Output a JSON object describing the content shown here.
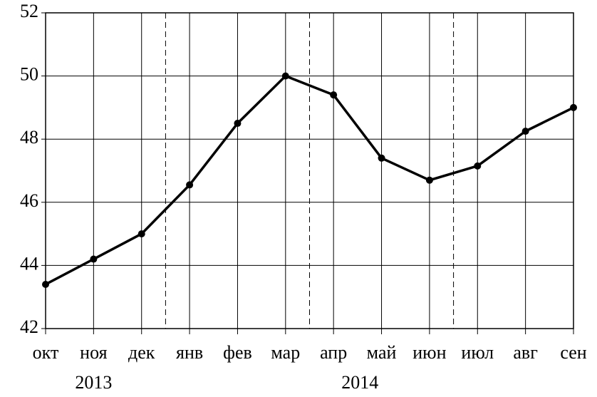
{
  "chart_data": {
    "type": "line",
    "categories": [
      "окт",
      "ноя",
      "дек",
      "янв",
      "фев",
      "мар",
      "апр",
      "май",
      "июн",
      "июл",
      "авг",
      "сен"
    ],
    "values": [
      43.4,
      44.2,
      45.0,
      46.55,
      48.5,
      50.0,
      49.4,
      47.4,
      46.7,
      47.15,
      48.25,
      49.0
    ],
    "color": "#000000",
    "ylim": [
      42,
      52
    ],
    "yticks": [
      42,
      44,
      46,
      48,
      50,
      52
    ],
    "grid": true,
    "year_labels": [
      "2013",
      "2014"
    ]
  }
}
